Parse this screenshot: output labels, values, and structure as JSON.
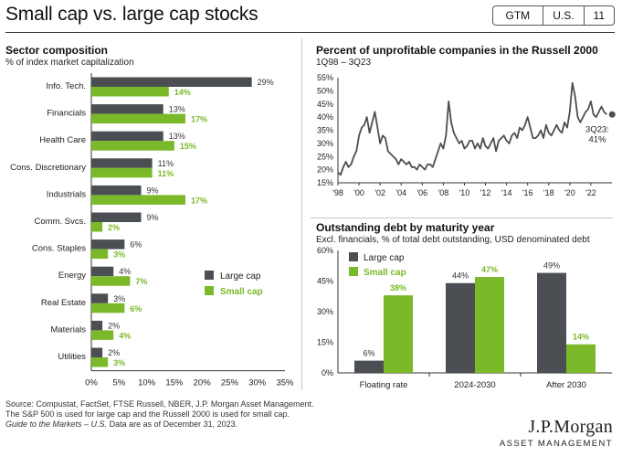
{
  "header": {
    "title": "Small cap vs. large cap stocks",
    "tags": [
      "GTM",
      "U.S.",
      "11"
    ]
  },
  "colors": {
    "large_cap": "#4b4f54",
    "small_cap": "#7ab929",
    "line": "#4b4f54"
  },
  "chart_data": [
    {
      "type": "bar",
      "orientation": "horizontal",
      "title": "Sector composition",
      "subtitle": "% of index market capitalization",
      "categories": [
        "Info. Tech.",
        "Financials",
        "Health Care",
        "Cons. Discretionary",
        "Industrials",
        "Comm. Svcs.",
        "Cons. Staples",
        "Energy",
        "Real Estate",
        "Materials",
        "Utilities"
      ],
      "series": [
        {
          "name": "Large cap",
          "values": [
            29,
            13,
            13,
            11,
            9,
            9,
            6,
            4,
            3,
            2,
            2
          ]
        },
        {
          "name": "Small cap",
          "values": [
            14,
            17,
            15,
            11,
            17,
            2,
            3,
            7,
            6,
            4,
            3
          ]
        }
      ],
      "xlim": [
        0,
        35
      ],
      "xticks": [
        "0%",
        "5%",
        "10%",
        "15%",
        "20%",
        "25%",
        "30%",
        "35%"
      ],
      "legend": "right"
    },
    {
      "type": "line",
      "title": "Percent of unprofitable companies in the Russell 2000",
      "subtitle": "1Q98 – 3Q23",
      "ylim": [
        15,
        55
      ],
      "yticks": [
        "55%",
        "50%",
        "45%",
        "40%",
        "35%",
        "30%",
        "25%",
        "20%",
        "15%"
      ],
      "xlim": [
        1998,
        2024
      ],
      "xticks": [
        "'98",
        "'00",
        "'02",
        "'04",
        "'06",
        "'08",
        "'10",
        "'12",
        "'14",
        "'16",
        "'18",
        "'20",
        "'22"
      ],
      "series": [
        {
          "x": [
            1998.0,
            1998.25,
            1998.5,
            1998.75,
            1999.0,
            1999.25,
            1999.5,
            1999.75,
            2000.0,
            2000.25,
            2000.5,
            2000.75,
            2001.0,
            2001.25,
            2001.5,
            2001.75,
            2002.0,
            2002.25,
            2002.5,
            2002.75,
            2003.0,
            2003.25,
            2003.5,
            2003.75,
            2004.0,
            2004.25,
            2004.5,
            2004.75,
            2005.0,
            2005.25,
            2005.5,
            2005.75,
            2006.0,
            2006.25,
            2006.5,
            2006.75,
            2007.0,
            2007.25,
            2007.5,
            2007.75,
            2008.0,
            2008.25,
            2008.5,
            2008.75,
            2009.0,
            2009.25,
            2009.5,
            2009.75,
            2010.0,
            2010.25,
            2010.5,
            2010.75,
            2011.0,
            2011.25,
            2011.5,
            2011.75,
            2012.0,
            2012.25,
            2012.5,
            2012.75,
            2013.0,
            2013.25,
            2013.5,
            2013.75,
            2014.0,
            2014.25,
            2014.5,
            2014.75,
            2015.0,
            2015.25,
            2015.5,
            2015.75,
            2016.0,
            2016.25,
            2016.5,
            2016.75,
            2017.0,
            2017.25,
            2017.5,
            2017.75,
            2018.0,
            2018.25,
            2018.5,
            2018.75,
            2019.0,
            2019.25,
            2019.5,
            2019.75,
            2020.0,
            2020.25,
            2020.5,
            2020.75,
            2021.0,
            2021.25,
            2021.5,
            2021.75,
            2022.0,
            2022.25,
            2022.5,
            2022.75,
            2023.0,
            2023.25,
            2023.5
          ],
          "y": [
            19,
            18,
            21,
            23,
            21,
            22,
            25,
            27,
            33,
            36,
            37,
            40,
            34,
            38,
            42,
            36,
            30,
            33,
            32,
            27,
            26,
            25,
            24,
            22,
            24,
            23,
            22,
            23,
            21,
            21,
            20,
            22,
            21,
            20,
            22,
            22,
            21,
            24,
            27,
            30,
            28,
            33,
            46,
            38,
            34,
            32,
            30,
            31,
            28,
            29,
            31,
            31,
            28,
            30,
            28,
            32,
            29,
            28,
            30,
            32,
            27,
            31,
            32,
            33,
            31,
            30,
            33,
            34,
            32,
            36,
            35,
            37,
            40,
            36,
            32,
            32,
            33,
            35,
            32,
            37,
            34,
            33,
            35,
            37,
            35,
            34,
            38,
            36,
            42,
            53,
            48,
            40,
            38,
            40,
            42,
            43,
            46,
            41,
            40,
            42,
            44,
            42,
            41
          ]
        }
      ],
      "annotation": {
        "label": "3Q23:",
        "value": "41%"
      }
    },
    {
      "type": "bar",
      "title": "Outstanding debt by maturity year",
      "subtitle": "Excl. financials, % of total debt outstanding, USD denominated debt",
      "categories": [
        "Floating rate",
        "2024-2030",
        "After 2030"
      ],
      "series": [
        {
          "name": "Large cap",
          "values": [
            6,
            44,
            49
          ],
          "labels": [
            "6%",
            "44%",
            "49%"
          ]
        },
        {
          "name": "Small cap",
          "values": [
            38,
            47,
            14
          ],
          "labels": [
            "38%",
            "47%",
            "14%"
          ]
        }
      ],
      "ylim": [
        0,
        60
      ],
      "yticks": [
        "60%",
        "45%",
        "30%",
        "15%",
        "0%"
      ],
      "legend": "top-left"
    }
  ],
  "footer": {
    "line1": "Source: Compustat, FactSet, FTSE Russell, NBER, J.P. Morgan Asset Management.",
    "line2": "The S&P 500 is used for large cap and the Russell 2000 is used for small cap.",
    "line3_italic": "Guide to the Markets – U.S.",
    "line3_rest": " Data are as of December 31, 2023."
  },
  "logo": {
    "line1": "J.P.Morgan",
    "line2": "ASSET MANAGEMENT"
  }
}
